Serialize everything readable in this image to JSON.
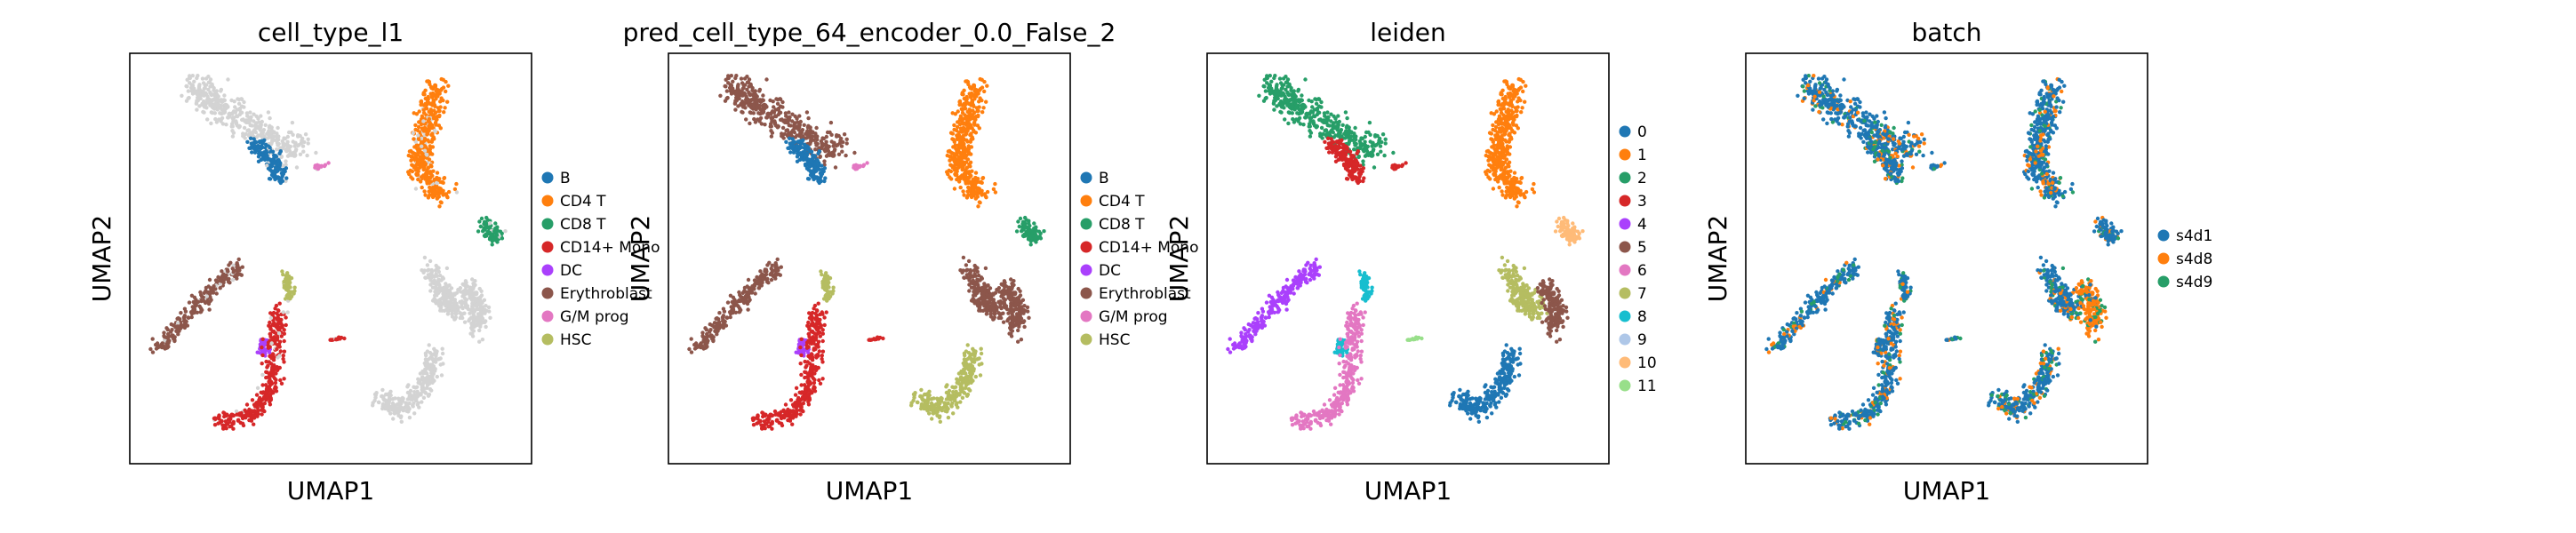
{
  "chart_data": [
    {
      "type": "scatter",
      "title": "cell_type_l1",
      "xlabel": "UMAP1",
      "ylabel": "UMAP2",
      "grid": false,
      "legend": "right",
      "series": [
        {
          "name": "B",
          "color": "#1f77b4"
        },
        {
          "name": "CD4 T",
          "color": "#ff7f0e"
        },
        {
          "name": "CD8 T",
          "color": "#279e68"
        },
        {
          "name": "CD14+ Mono",
          "color": "#d62728"
        },
        {
          "name": "DC",
          "color": "#aa40fc"
        },
        {
          "name": "Erythroblast",
          "color": "#8c564b"
        },
        {
          "name": "G/M prog",
          "color": "#e377c2"
        },
        {
          "name": "HSC",
          "color": "#b5bd61"
        }
      ]
    },
    {
      "type": "scatter",
      "title": "pred_cell_type_64_encoder_0.0_False_2",
      "xlabel": "UMAP1",
      "ylabel": "UMAP2",
      "grid": false,
      "legend": "right",
      "series": [
        {
          "name": "B",
          "color": "#1f77b4"
        },
        {
          "name": "CD4 T",
          "color": "#ff7f0e"
        },
        {
          "name": "CD8 T",
          "color": "#279e68"
        },
        {
          "name": "CD14+ Mono",
          "color": "#d62728"
        },
        {
          "name": "DC",
          "color": "#aa40fc"
        },
        {
          "name": "Erythroblast",
          "color": "#8c564b"
        },
        {
          "name": "G/M prog",
          "color": "#e377c2"
        },
        {
          "name": "HSC",
          "color": "#b5bd61"
        }
      ]
    },
    {
      "type": "scatter",
      "title": "leiden",
      "xlabel": "UMAP1",
      "ylabel": "UMAP2",
      "grid": false,
      "legend": "right",
      "series": [
        {
          "name": "0",
          "color": "#1f77b4"
        },
        {
          "name": "1",
          "color": "#ff7f0e"
        },
        {
          "name": "2",
          "color": "#279e68"
        },
        {
          "name": "3",
          "color": "#d62728"
        },
        {
          "name": "4",
          "color": "#aa40fc"
        },
        {
          "name": "5",
          "color": "#8c564b"
        },
        {
          "name": "6",
          "color": "#e377c2"
        },
        {
          "name": "7",
          "color": "#b5bd61"
        },
        {
          "name": "8",
          "color": "#17becf"
        },
        {
          "name": "9",
          "color": "#aec7e8"
        },
        {
          "name": "10",
          "color": "#ffbb78"
        },
        {
          "name": "11",
          "color": "#98df8a"
        }
      ]
    },
    {
      "type": "scatter",
      "title": "batch",
      "xlabel": "UMAP1",
      "ylabel": "UMAP2",
      "grid": false,
      "legend": "right",
      "series": [
        {
          "name": "s4d1",
          "color": "#1f77b4"
        },
        {
          "name": "s4d8",
          "color": "#ff7f0e"
        },
        {
          "name": "s4d9",
          "color": "#279e68"
        }
      ]
    }
  ]
}
